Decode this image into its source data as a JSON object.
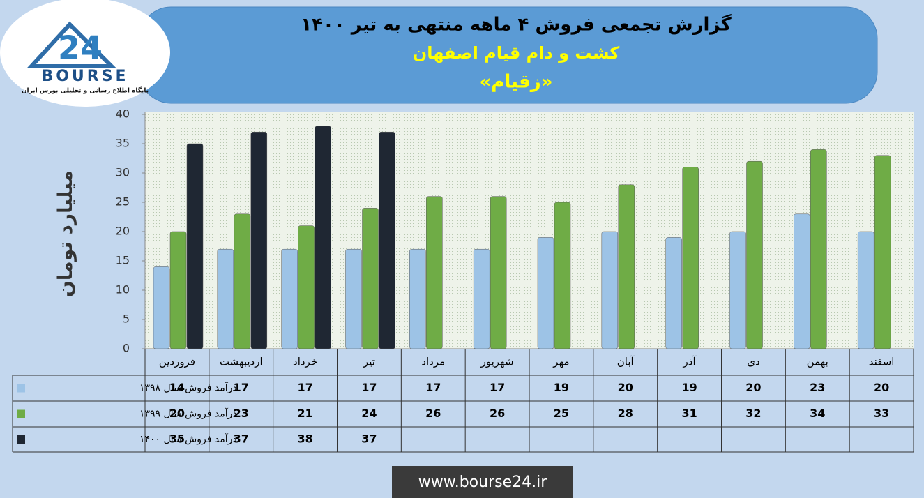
{
  "chart_data": {
    "type": "bar",
    "title": "گزارش تجمعی فروش ۴ ماهه منتهی به تیر ۱۴۰۰",
    "subtitle": "کشت و دام قیام اصفهان",
    "symbol": "«زقیام»",
    "y_label": "میلیارد تومان",
    "categories": [
      "فروردین",
      "اردیبهشت",
      "خرداد",
      "تیر",
      "مرداد",
      "شهریور",
      "مهر",
      "آبان",
      "آذر",
      "دی",
      "بهمن",
      "اسفند"
    ],
    "series": [
      {
        "name": "درآمد فروش سال ۱۳۹۸",
        "color": "#9dc3e6",
        "values": [
          14,
          17,
          17,
          17,
          17,
          17,
          19,
          20,
          19,
          20,
          23,
          20
        ]
      },
      {
        "name": "درآمد فروش سال ۱۳۹۹",
        "color": "#6fac46",
        "values": [
          20,
          23,
          21,
          24,
          26,
          26,
          25,
          28,
          31,
          32,
          34,
          33
        ]
      },
      {
        "name": "درآمد فروش سال ۱۴۰۰",
        "color": "#1f2733",
        "values": [
          35,
          37,
          38,
          37,
          null,
          null,
          null,
          null,
          null,
          null,
          null,
          null
        ]
      }
    ],
    "ylim": [
      0,
      40
    ],
    "yticks": [
      0,
      5,
      10,
      15,
      20,
      25,
      30,
      35,
      40
    ],
    "grid": false
  },
  "logo": {
    "number": "24",
    "brand": "BOURSE",
    "tagline": "پایگاه اطلاع رسانی و تحلیلی بورس ایران"
  },
  "footer": {
    "url": "www.bourse24.ir"
  }
}
